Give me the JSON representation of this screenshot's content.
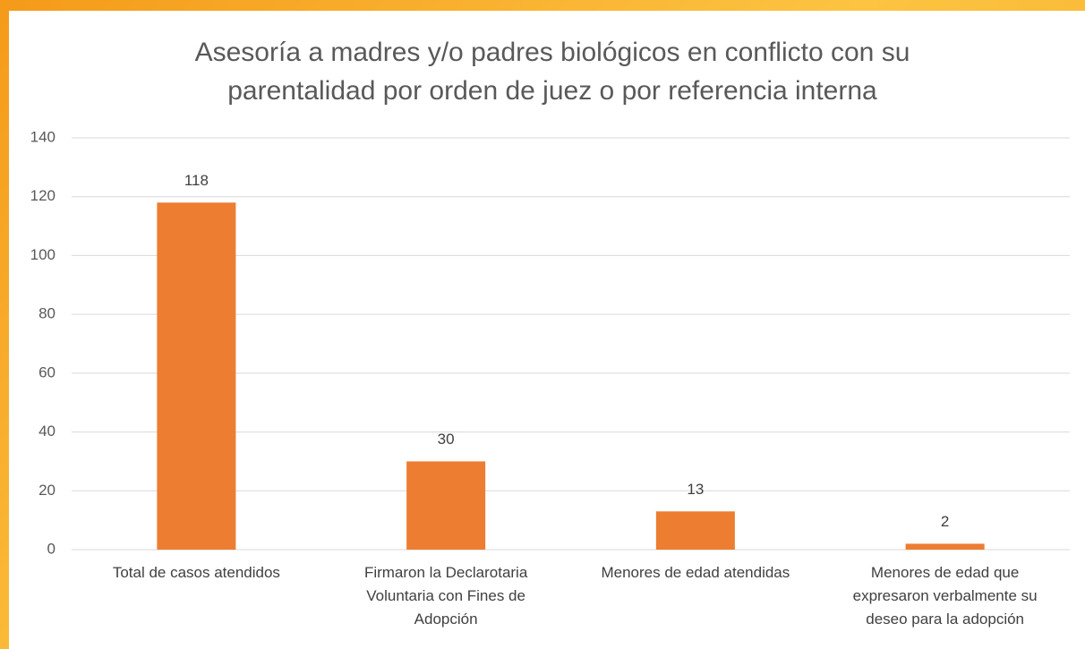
{
  "chart_data": {
    "type": "bar",
    "title": "Asesoría a madres y/o padres biológicos en conflicto con su parentalidad por orden de juez o por referencia interna",
    "categories": [
      "Total de casos atendidos",
      "Firmaron la Declarotaria Voluntaria con Fines de Adopción",
      "Menores de edad atendidas",
      "Menores de edad que expresaron verbalmente su deseo para la adopción"
    ],
    "values": [
      118,
      30,
      13,
      2
    ],
    "color": "#ed7d31",
    "ylim": [
      0,
      140
    ],
    "yticks": [
      0,
      20,
      40,
      60,
      80,
      100,
      120,
      140
    ],
    "grid": true
  }
}
